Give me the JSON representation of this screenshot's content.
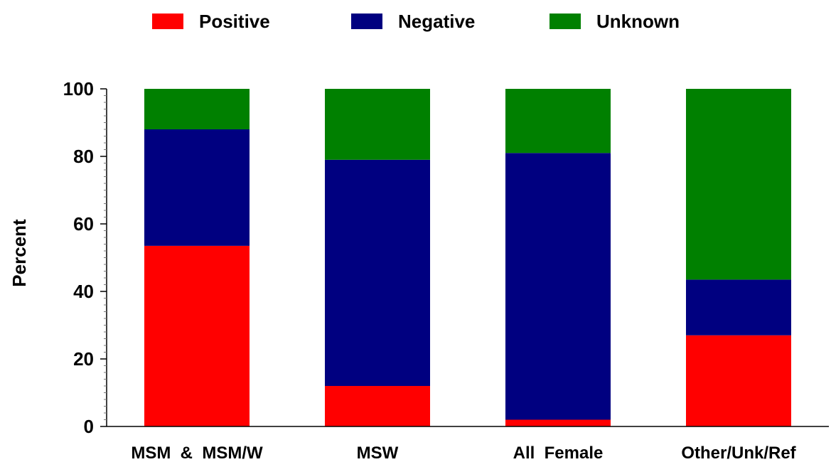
{
  "chart_data": {
    "type": "bar",
    "stacked": true,
    "categories": [
      "MSM  &  MSM/W",
      "MSW",
      "All  Female",
      "Other/Unk/Ref"
    ],
    "series": [
      {
        "name": "Positive",
        "color": "#ff0000",
        "values": [
          53.5,
          12,
          2,
          27
        ]
      },
      {
        "name": "Negative",
        "color": "#000080",
        "values": [
          34.5,
          67,
          79,
          16.5
        ]
      },
      {
        "name": "Unknown",
        "color": "#008000",
        "values": [
          12,
          21,
          19,
          56.5
        ]
      }
    ],
    "title": "",
    "xlabel": "",
    "ylabel": "Percent",
    "ylim": [
      0,
      100
    ],
    "yticks": [
      "0",
      "20",
      "40",
      "60",
      "80",
      "100"
    ],
    "grid": false,
    "legend_position": "top"
  }
}
